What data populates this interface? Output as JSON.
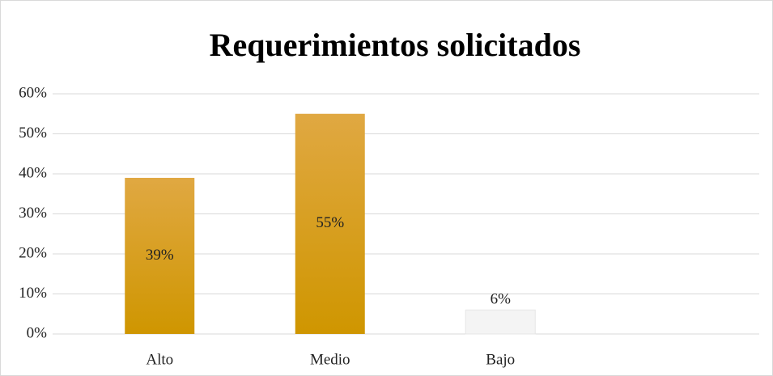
{
  "chart_data": {
    "type": "bar",
    "title": "Requerimientos  solicitados",
    "categories": [
      "Alto",
      "Medio",
      "Bajo"
    ],
    "values": [
      39,
      55,
      6
    ],
    "value_labels": [
      "39%",
      "55%",
      "6%"
    ],
    "colors": [
      "#d9a000",
      "#d9a000",
      "#f4f4f4"
    ],
    "ylim": [
      0,
      60
    ],
    "yticks": [
      {
        "value": 0,
        "label": "0%"
      },
      {
        "value": 10,
        "label": "10%"
      },
      {
        "value": 20,
        "label": "20%"
      },
      {
        "value": 30,
        "label": "30%"
      },
      {
        "value": 40,
        "label": "40%"
      },
      {
        "value": 50,
        "label": "50%"
      },
      {
        "value": 60,
        "label": "60%"
      }
    ],
    "grid": true
  }
}
